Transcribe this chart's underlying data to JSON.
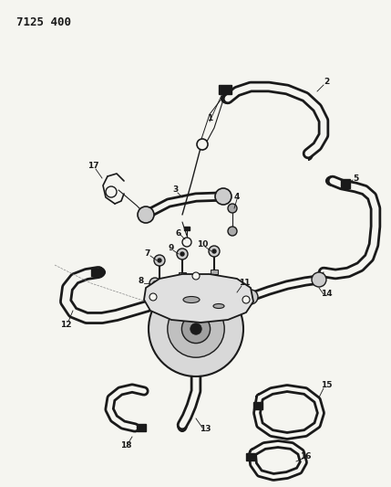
{
  "title": "7125 400",
  "bg_color": "#f5f5f0",
  "line_color": "#1a1a1a",
  "label_color": "#1a1a1a",
  "label_fontsize": 6.5,
  "title_fontsize": 9,
  "figsize": [
    4.29,
    5.33
  ],
  "dpi": 100
}
